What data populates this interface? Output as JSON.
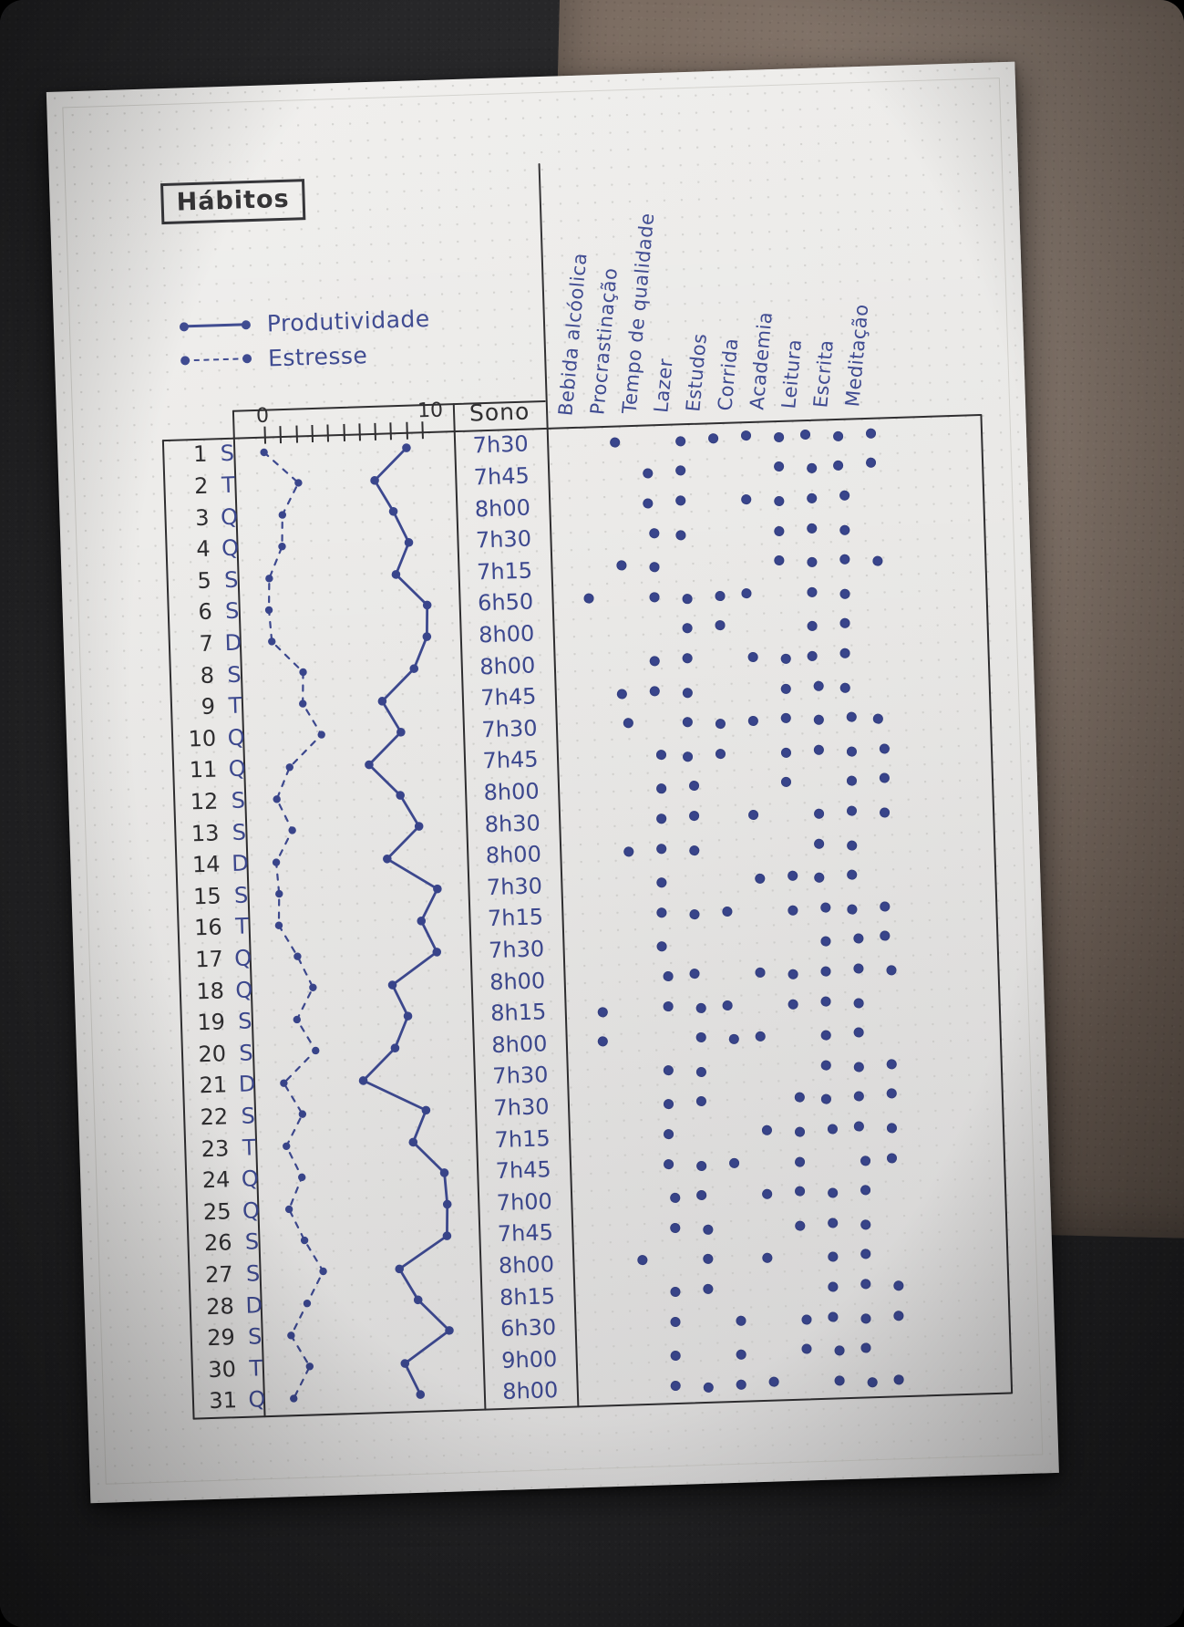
{
  "title": "Hábitos",
  "legend": [
    {
      "label": "Produtividade",
      "line": "solid"
    },
    {
      "label": "Estresse",
      "line": "dashed"
    }
  ],
  "table": {
    "axis": {
      "min_label": "0",
      "max_label": "10",
      "tick_count": 11
    },
    "sono_header": "Sono",
    "habit_columns": [
      "Bebida alcóolica",
      "Procrastinação",
      "Tempo de qualidade",
      "Lazer",
      "Estudos",
      "Corrida",
      "Academia",
      "Leitura",
      "Escrita",
      "Meditação"
    ],
    "days": [
      {
        "day": 1,
        "weekday": "S",
        "sono": "7h30",
        "habits": [
          0,
          1,
          0,
          1,
          1,
          1,
          1,
          1,
          1,
          1
        ]
      },
      {
        "day": 2,
        "weekday": "T",
        "sono": "7h45",
        "habits": [
          0,
          0,
          1,
          1,
          0,
          0,
          1,
          1,
          1,
          1
        ]
      },
      {
        "day": 3,
        "weekday": "Q",
        "sono": "8h00",
        "habits": [
          0,
          0,
          1,
          1,
          0,
          1,
          1,
          1,
          1,
          0
        ]
      },
      {
        "day": 4,
        "weekday": "Q",
        "sono": "7h30",
        "habits": [
          0,
          0,
          1,
          1,
          0,
          0,
          1,
          1,
          1,
          0
        ]
      },
      {
        "day": 5,
        "weekday": "S",
        "sono": "7h15",
        "habits": [
          0,
          1,
          1,
          0,
          0,
          0,
          1,
          1,
          1,
          1
        ]
      },
      {
        "day": 6,
        "weekday": "S",
        "sono": "6h50",
        "habits": [
          1,
          0,
          1,
          1,
          1,
          1,
          0,
          1,
          1,
          0
        ]
      },
      {
        "day": 7,
        "weekday": "D",
        "sono": "8h00",
        "habits": [
          0,
          0,
          0,
          1,
          1,
          0,
          0,
          1,
          1,
          0
        ]
      },
      {
        "day": 8,
        "weekday": "S",
        "sono": "8h00",
        "habits": [
          0,
          0,
          1,
          1,
          0,
          1,
          1,
          1,
          1,
          0
        ]
      },
      {
        "day": 9,
        "weekday": "T",
        "sono": "7h45",
        "habits": [
          0,
          1,
          1,
          1,
          0,
          0,
          1,
          1,
          1,
          0
        ]
      },
      {
        "day": 10,
        "weekday": "Q",
        "sono": "7h30",
        "habits": [
          0,
          1,
          0,
          1,
          1,
          1,
          1,
          1,
          1,
          1
        ]
      },
      {
        "day": 11,
        "weekday": "Q",
        "sono": "7h45",
        "habits": [
          0,
          0,
          1,
          1,
          1,
          0,
          1,
          1,
          1,
          1
        ]
      },
      {
        "day": 12,
        "weekday": "S",
        "sono": "8h00",
        "habits": [
          0,
          0,
          1,
          1,
          0,
          0,
          1,
          0,
          1,
          1
        ]
      },
      {
        "day": 13,
        "weekday": "S",
        "sono": "8h30",
        "habits": [
          0,
          0,
          1,
          1,
          0,
          1,
          0,
          1,
          1,
          1
        ]
      },
      {
        "day": 14,
        "weekday": "D",
        "sono": "8h00",
        "habits": [
          0,
          1,
          1,
          1,
          0,
          0,
          0,
          1,
          1,
          0
        ]
      },
      {
        "day": 15,
        "weekday": "S",
        "sono": "7h30",
        "habits": [
          0,
          0,
          1,
          0,
          0,
          1,
          1,
          1,
          1,
          0
        ]
      },
      {
        "day": 16,
        "weekday": "T",
        "sono": "7h15",
        "habits": [
          0,
          0,
          1,
          1,
          1,
          0,
          1,
          1,
          1,
          1
        ]
      },
      {
        "day": 17,
        "weekday": "Q",
        "sono": "7h30",
        "habits": [
          0,
          0,
          1,
          0,
          0,
          0,
          0,
          1,
          1,
          1
        ]
      },
      {
        "day": 18,
        "weekday": "Q",
        "sono": "8h00",
        "habits": [
          0,
          0,
          1,
          1,
          0,
          1,
          1,
          1,
          1,
          1
        ]
      },
      {
        "day": 19,
        "weekday": "S",
        "sono": "8h15",
        "habits": [
          1,
          0,
          1,
          1,
          1,
          0,
          1,
          1,
          1,
          0
        ]
      },
      {
        "day": 20,
        "weekday": "S",
        "sono": "8h00",
        "habits": [
          1,
          0,
          0,
          1,
          1,
          1,
          0,
          1,
          1,
          0
        ]
      },
      {
        "day": 21,
        "weekday": "D",
        "sono": "7h30",
        "habits": [
          0,
          0,
          1,
          1,
          0,
          0,
          0,
          1,
          1,
          1
        ]
      },
      {
        "day": 22,
        "weekday": "S",
        "sono": "7h30",
        "habits": [
          0,
          0,
          1,
          1,
          0,
          0,
          1,
          1,
          1,
          1
        ]
      },
      {
        "day": 23,
        "weekday": "T",
        "sono": "7h15",
        "habits": [
          0,
          0,
          1,
          0,
          0,
          1,
          1,
          1,
          1,
          1
        ]
      },
      {
        "day": 24,
        "weekday": "Q",
        "sono": "7h45",
        "habits": [
          0,
          0,
          1,
          1,
          1,
          0,
          1,
          0,
          1,
          1
        ]
      },
      {
        "day": 25,
        "weekday": "Q",
        "sono": "7h00",
        "habits": [
          0,
          0,
          1,
          1,
          0,
          1,
          1,
          1,
          1,
          0
        ]
      },
      {
        "day": 26,
        "weekday": "S",
        "sono": "7h45",
        "habits": [
          0,
          0,
          1,
          1,
          0,
          0,
          1,
          1,
          1,
          0
        ]
      },
      {
        "day": 27,
        "weekday": "S",
        "sono": "8h00",
        "habits": [
          0,
          1,
          0,
          1,
          0,
          1,
          0,
          1,
          1,
          0
        ]
      },
      {
        "day": 28,
        "weekday": "D",
        "sono": "8h15",
        "habits": [
          0,
          0,
          1,
          1,
          0,
          0,
          0,
          1,
          1,
          1
        ]
      },
      {
        "day": 29,
        "weekday": "S",
        "sono": "6h30",
        "habits": [
          0,
          0,
          1,
          0,
          1,
          0,
          1,
          1,
          1,
          1
        ]
      },
      {
        "day": 30,
        "weekday": "T",
        "sono": "9h00",
        "habits": [
          0,
          0,
          1,
          0,
          1,
          0,
          1,
          1,
          1,
          0
        ]
      },
      {
        "day": 31,
        "weekday": "Q",
        "sono": "8h00",
        "habits": [
          0,
          0,
          1,
          1,
          1,
          1,
          0,
          1,
          1,
          1
        ]
      }
    ]
  },
  "chart_data": {
    "type": "line",
    "orientation": "days run vertically top to bottom, value axis horizontal",
    "value_axis_range": [
      0,
      10
    ],
    "x_days": [
      1,
      2,
      3,
      4,
      5,
      6,
      7,
      8,
      9,
      10,
      11,
      12,
      13,
      14,
      15,
      16,
      17,
      18,
      19,
      20,
      21,
      22,
      23,
      24,
      25,
      26,
      27,
      28,
      29,
      30,
      31
    ],
    "series": [
      {
        "name": "Produtividade",
        "style": "solid",
        "values": [
          9,
          7,
          8,
          9,
          8,
          10,
          10,
          9,
          7,
          8,
          6,
          8,
          9,
          7,
          10,
          9,
          10,
          7,
          8,
          7,
          5,
          9,
          8,
          10,
          10,
          10,
          7,
          8,
          10,
          7,
          8
        ]
      },
      {
        "name": "Estresse",
        "style": "dashed",
        "values": [
          0,
          2,
          1,
          1,
          0,
          0,
          0,
          2,
          2,
          3,
          1,
          0,
          1,
          0,
          0,
          0,
          1,
          2,
          1,
          2,
          0,
          1,
          0,
          1,
          0,
          1,
          2,
          1,
          0,
          1,
          0
        ]
      }
    ],
    "title": "Hábitos",
    "legend_position": "top-left above chart"
  },
  "colors": {
    "ink_blue": "#3c488f",
    "ink_black": "#2e2d2f",
    "paper": "#e9e8e6",
    "desk": "#242426",
    "leather": "#74655a"
  }
}
